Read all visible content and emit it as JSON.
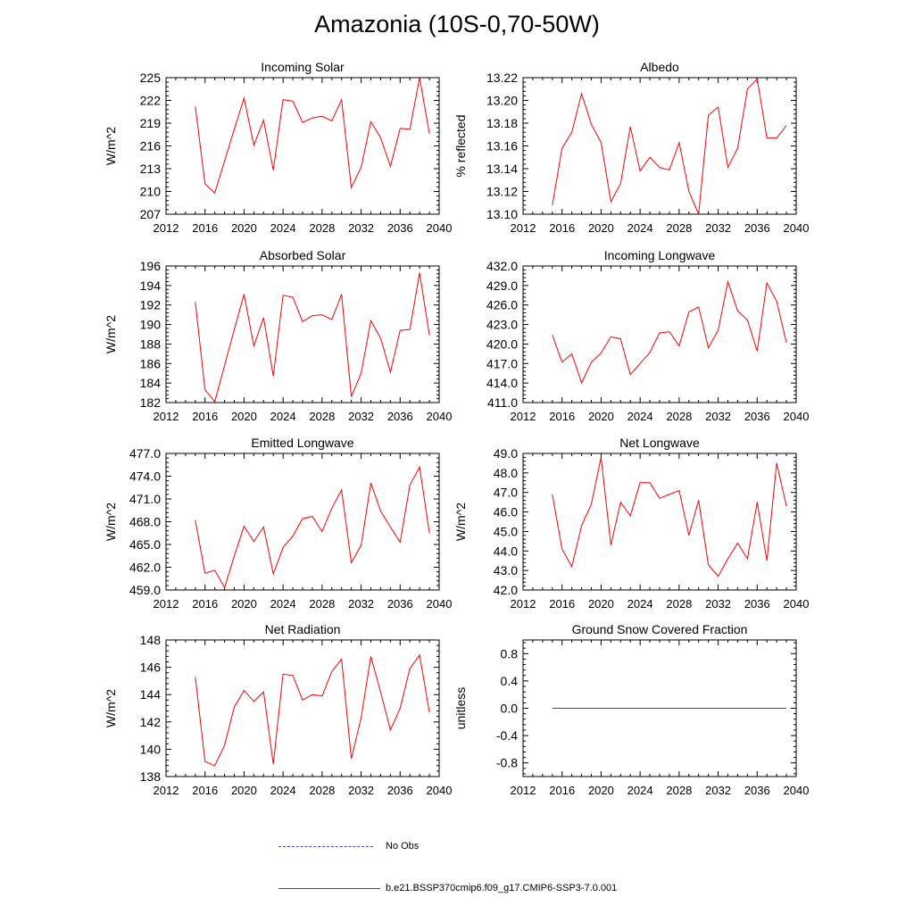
{
  "title": "Amazonia (10S-0,70-50W)",
  "colors": {
    "model": "#ff0000",
    "obs": "#4b4bbd",
    "axis": "#000000"
  },
  "legend": {
    "obs_label": "No Obs",
    "model_label": "b.e21.BSSP370cmip6.f09_g17.CMIP6-SSP3-7.0.001"
  },
  "chart_data": [
    {
      "type": "line",
      "title": "Incoming Solar",
      "ylabel": "W/m^2",
      "xlim": [
        2012,
        2040
      ],
      "xticks": [
        2012,
        2016,
        2020,
        2024,
        2028,
        2032,
        2036,
        2040
      ],
      "xtick_labels": [
        "2012",
        "2016",
        "2020",
        "2024",
        "2028",
        "2032",
        "2036",
        "2040"
      ],
      "ylim": [
        207,
        225
      ],
      "yticks": [
        207,
        210,
        213,
        216,
        219,
        222,
        225
      ],
      "ytick_labels": [
        "207",
        "210",
        "213",
        "216",
        "219",
        "222",
        "225"
      ],
      "x": [
        2015,
        2016,
        2017,
        2018,
        2019,
        2020,
        2021,
        2022,
        2023,
        2024,
        2025,
        2026,
        2027,
        2028,
        2029,
        2030,
        2031,
        2032,
        2033,
        2034,
        2035,
        2036,
        2037,
        2038,
        2039
      ],
      "series": [
        {
          "name": "b.e21.BSSP370cmip6.f09_g17.CMIP6-SSP3-7.0.001",
          "values": [
            221.2,
            211.0,
            209.8,
            214.0,
            218.2,
            222.3,
            216.1,
            219.4,
            212.8,
            222.1,
            221.9,
            219.1,
            219.7,
            219.9,
            219.3,
            222.1,
            210.5,
            213.2,
            219.2,
            217.1,
            213.3,
            218.3,
            218.2,
            225.0,
            217.6
          ]
        }
      ]
    },
    {
      "type": "line",
      "title": "Albedo",
      "ylabel": "% reflected",
      "xlim": [
        2012,
        2040
      ],
      "xticks": [
        2012,
        2016,
        2020,
        2024,
        2028,
        2032,
        2036,
        2040
      ],
      "xtick_labels": [
        "2012",
        "2016",
        "2020",
        "2024",
        "2028",
        "2032",
        "2036",
        "2040"
      ],
      "ylim": [
        13.1,
        13.22
      ],
      "yticks": [
        13.1,
        13.12,
        13.14,
        13.16,
        13.18,
        13.2,
        13.22
      ],
      "ytick_labels": [
        "13.10",
        "13.12",
        "13.14",
        "13.16",
        "13.18",
        "13.20",
        "13.22"
      ],
      "x": [
        2015,
        2016,
        2017,
        2018,
        2019,
        2020,
        2021,
        2022,
        2023,
        2024,
        2025,
        2026,
        2027,
        2028,
        2029,
        2030,
        2031,
        2032,
        2033,
        2034,
        2035,
        2036,
        2037,
        2038,
        2039
      ],
      "series": [
        {
          "name": "b.e21.BSSP370cmip6.f09_g17.CMIP6-SSP3-7.0.001",
          "values": [
            13.108,
            13.158,
            13.172,
            13.206,
            13.179,
            13.163,
            13.111,
            13.127,
            13.177,
            13.138,
            13.15,
            13.141,
            13.139,
            13.163,
            13.12,
            13.1,
            13.187,
            13.194,
            13.141,
            13.158,
            13.21,
            13.219,
            13.167,
            13.167,
            13.178
          ]
        }
      ]
    },
    {
      "type": "line",
      "title": "Absorbed Solar",
      "ylabel": "W/m^2",
      "xlim": [
        2012,
        2040
      ],
      "xticks": [
        2012,
        2016,
        2020,
        2024,
        2028,
        2032,
        2036,
        2040
      ],
      "xtick_labels": [
        "2012",
        "2016",
        "2020",
        "2024",
        "2028",
        "2032",
        "2036",
        "2040"
      ],
      "ylim": [
        182,
        196
      ],
      "yticks": [
        182,
        184,
        186,
        188,
        190,
        192,
        194,
        196
      ],
      "ytick_labels": [
        "182",
        "184",
        "186",
        "188",
        "190",
        "192",
        "194",
        "196"
      ],
      "x": [
        2015,
        2016,
        2017,
        2018,
        2019,
        2020,
        2021,
        2022,
        2023,
        2024,
        2025,
        2026,
        2027,
        2028,
        2029,
        2030,
        2031,
        2032,
        2033,
        2034,
        2035,
        2036,
        2037,
        2038,
        2039
      ],
      "series": [
        {
          "name": "b.e21.BSSP370cmip6.f09_g17.CMIP6-SSP3-7.0.001",
          "values": [
            192.3,
            183.3,
            182.1,
            185.8,
            189.5,
            193.1,
            187.8,
            190.7,
            184.7,
            193.0,
            192.8,
            190.3,
            190.9,
            191.0,
            190.5,
            193.1,
            182.6,
            185.0,
            190.4,
            188.6,
            185.1,
            189.4,
            189.5,
            195.3,
            188.9
          ]
        }
      ]
    },
    {
      "type": "line",
      "title": "Incoming Longwave",
      "ylabel": "",
      "xlim": [
        2012,
        2040
      ],
      "xticks": [
        2012,
        2016,
        2020,
        2024,
        2028,
        2032,
        2036,
        2040
      ],
      "xtick_labels": [
        "2012",
        "2016",
        "2020",
        "2024",
        "2028",
        "2032",
        "2036",
        "2040"
      ],
      "ylim": [
        411,
        432
      ],
      "yticks": [
        411,
        414,
        417,
        420,
        423,
        426,
        429,
        432
      ],
      "ytick_labels": [
        "411.0",
        "414.0",
        "417.0",
        "420.0",
        "423.0",
        "426.0",
        "429.0",
        "432.0"
      ],
      "x": [
        2015,
        2016,
        2017,
        2018,
        2019,
        2020,
        2021,
        2022,
        2023,
        2024,
        2025,
        2026,
        2027,
        2028,
        2029,
        2030,
        2031,
        2032,
        2033,
        2034,
        2035,
        2036,
        2037,
        2038,
        2039
      ],
      "series": [
        {
          "name": "b.e21.BSSP370cmip6.f09_g17.CMIP6-SSP3-7.0.001",
          "values": [
            421.4,
            417.2,
            418.5,
            414.0,
            417.2,
            418.6,
            421.1,
            420.8,
            415.3,
            417.0,
            418.7,
            421.7,
            421.9,
            419.7,
            424.9,
            425.7,
            419.4,
            422.1,
            429.6,
            425.1,
            423.7,
            418.9,
            429.4,
            426.6,
            420.2
          ]
        }
      ]
    },
    {
      "type": "line",
      "title": "Emitted Longwave",
      "ylabel": "W/m^2",
      "xlim": [
        2012,
        2040
      ],
      "xticks": [
        2012,
        2016,
        2020,
        2024,
        2028,
        2032,
        2036,
        2040
      ],
      "xtick_labels": [
        "2012",
        "2016",
        "2020",
        "2024",
        "2028",
        "2032",
        "2036",
        "2040"
      ],
      "ylim": [
        459,
        477
      ],
      "yticks": [
        459,
        462,
        465,
        468,
        471,
        474,
        477
      ],
      "ytick_labels": [
        "459.0",
        "462.0",
        "465.0",
        "468.0",
        "471.0",
        "474.0",
        "477.0"
      ],
      "x": [
        2015,
        2016,
        2017,
        2018,
        2019,
        2020,
        2021,
        2022,
        2023,
        2024,
        2025,
        2026,
        2027,
        2028,
        2029,
        2030,
        2031,
        2032,
        2033,
        2034,
        2035,
        2036,
        2037,
        2038,
        2039
      ],
      "series": [
        {
          "name": "b.e21.BSSP370cmip6.f09_g17.CMIP6-SSP3-7.0.001",
          "values": [
            468.2,
            461.2,
            461.6,
            459.3,
            463.5,
            467.4,
            465.4,
            467.3,
            461.1,
            464.6,
            466.1,
            468.4,
            468.7,
            466.7,
            469.8,
            472.2,
            462.6,
            464.9,
            473.1,
            469.4,
            467.3,
            465.3,
            472.8,
            475.2,
            466.5
          ]
        }
      ]
    },
    {
      "type": "line",
      "title": "Net Longwave",
      "ylabel": "W/m^2",
      "xlim": [
        2012,
        2040
      ],
      "xticks": [
        2012,
        2016,
        2020,
        2024,
        2028,
        2032,
        2036,
        2040
      ],
      "xtick_labels": [
        "2012",
        "2016",
        "2020",
        "2024",
        "2028",
        "2032",
        "2036",
        "2040"
      ],
      "ylim": [
        42,
        49
      ],
      "yticks": [
        42,
        43,
        44,
        45,
        46,
        47,
        48,
        49
      ],
      "ytick_labels": [
        "42.0",
        "43.0",
        "44.0",
        "45.0",
        "46.0",
        "47.0",
        "48.0",
        "49.0"
      ],
      "x": [
        2015,
        2016,
        2017,
        2018,
        2019,
        2020,
        2021,
        2022,
        2023,
        2024,
        2025,
        2026,
        2027,
        2028,
        2029,
        2030,
        2031,
        2032,
        2033,
        2034,
        2035,
        2036,
        2037,
        2038,
        2039
      ],
      "series": [
        {
          "name": "b.e21.BSSP370cmip6.f09_g17.CMIP6-SSP3-7.0.001",
          "values": [
            46.9,
            44.1,
            43.2,
            45.3,
            46.4,
            48.8,
            44.3,
            46.5,
            45.8,
            47.5,
            47.5,
            46.7,
            46.9,
            47.1,
            44.8,
            46.6,
            43.3,
            42.7,
            43.6,
            44.4,
            43.6,
            46.5,
            43.5,
            48.5,
            46.3
          ]
        }
      ]
    },
    {
      "type": "line",
      "title": "Net Radiation",
      "ylabel": "W/m^2",
      "xlim": [
        2012,
        2040
      ],
      "xticks": [
        2012,
        2016,
        2020,
        2024,
        2028,
        2032,
        2036,
        2040
      ],
      "xtick_labels": [
        "2012",
        "2016",
        "2020",
        "2024",
        "2028",
        "2032",
        "2036",
        "2040"
      ],
      "ylim": [
        138,
        148
      ],
      "yticks": [
        138,
        140,
        142,
        144,
        146,
        148
      ],
      "ytick_labels": [
        "138",
        "140",
        "142",
        "144",
        "146",
        "148"
      ],
      "x": [
        2015,
        2016,
        2017,
        2018,
        2019,
        2020,
        2021,
        2022,
        2023,
        2024,
        2025,
        2026,
        2027,
        2028,
        2029,
        2030,
        2031,
        2032,
        2033,
        2034,
        2035,
        2036,
        2037,
        2038,
        2039
      ],
      "series": [
        {
          "name": "b.e21.BSSP370cmip6.f09_g17.CMIP6-SSP3-7.0.001",
          "values": [
            145.3,
            139.1,
            138.8,
            140.3,
            143.1,
            144.3,
            143.5,
            144.2,
            138.9,
            145.5,
            145.4,
            143.6,
            144.0,
            143.9,
            145.7,
            146.6,
            139.3,
            142.3,
            146.8,
            144.2,
            141.4,
            143.0,
            145.9,
            146.9,
            142.7
          ]
        }
      ]
    },
    {
      "type": "line",
      "title": "Ground Snow Covered Fraction",
      "ylabel": "unitless",
      "xlim": [
        2012,
        2040
      ],
      "xticks": [
        2012,
        2016,
        2020,
        2024,
        2028,
        2032,
        2036,
        2040
      ],
      "xtick_labels": [
        "2012",
        "2016",
        "2020",
        "2024",
        "2028",
        "2032",
        "2036",
        "2040"
      ],
      "ylim": [
        -1.0,
        1.0
      ],
      "yticks": [
        -0.8,
        -0.4,
        0.0,
        0.4,
        0.8
      ],
      "ytick_labels": [
        "-0.8",
        "-0.4",
        "0.0",
        "0.4",
        "0.8"
      ],
      "x": [
        2015,
        2016,
        2017,
        2018,
        2019,
        2020,
        2021,
        2022,
        2023,
        2024,
        2025,
        2026,
        2027,
        2028,
        2029,
        2030,
        2031,
        2032,
        2033,
        2034,
        2035,
        2036,
        2037,
        2038,
        2039
      ],
      "series": [
        {
          "name": "b.e21.BSSP370cmip6.f09_g17.CMIP6-SSP3-7.0.001",
          "values": [
            0,
            0,
            0,
            0,
            0,
            0,
            0,
            0,
            0,
            0,
            0,
            0,
            0,
            0,
            0,
            0,
            0,
            0,
            0,
            0,
            0,
            0,
            0,
            0,
            0
          ]
        }
      ]
    }
  ]
}
